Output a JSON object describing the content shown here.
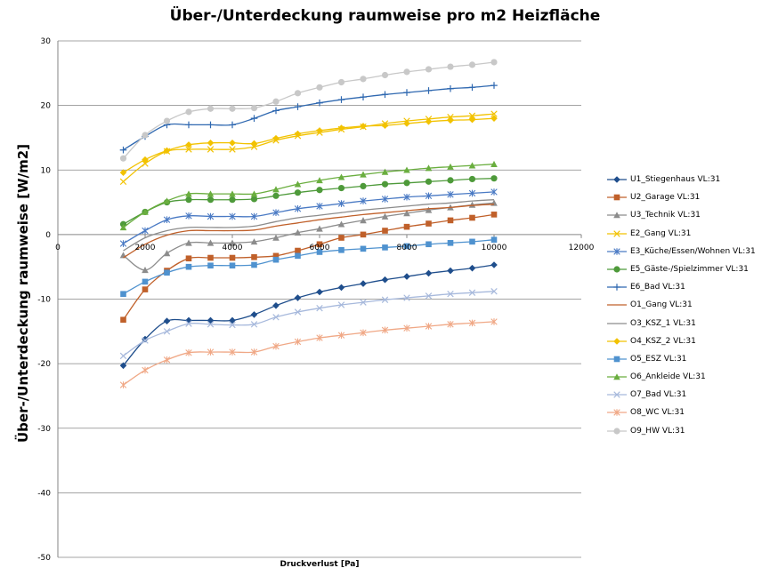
{
  "chart_data": {
    "type": "line",
    "title": "Über-/Unterdeckung raumweise pro m2 Heizfläche",
    "xlabel": "Druckverlust [Pa]",
    "ylabel": "Über-/Unterdeckung raumweise [W/m2]",
    "xlim": [
      0,
      12000
    ],
    "ylim": [
      -50,
      30
    ],
    "x_ticks": [
      "0",
      "2000",
      "4000",
      "6000",
      "8000",
      "10000",
      "12000"
    ],
    "y_ticks": [
      "-50",
      "-40",
      "-30",
      "-20",
      "-10",
      "0",
      "10",
      "20",
      "30"
    ],
    "grid": true,
    "legend": "right",
    "x": [
      1500,
      2000,
      2500,
      3000,
      3500,
      4000,
      4500,
      5000,
      5500,
      6000,
      6500,
      7000,
      7500,
      8000,
      8500,
      9000,
      9500,
      10000
    ],
    "series": [
      {
        "name": "U1_Stiegenhaus VL:31",
        "color": "#1f4e8c",
        "marker": "diamond",
        "values": [
          -20.3,
          -16.2,
          -13.4,
          -13.3,
          -13.3,
          -13.3,
          -12.4,
          -11.0,
          -9.8,
          -8.9,
          -8.2,
          -7.6,
          -7.0,
          -6.5,
          -6.0,
          -5.6,
          -5.2,
          -4.7
        ]
      },
      {
        "name": "U2_Garage VL:31",
        "color": "#c0602a",
        "marker": "square",
        "values": [
          -13.2,
          -8.5,
          -5.6,
          -3.7,
          -3.6,
          -3.6,
          -3.5,
          -3.3,
          -2.5,
          -1.5,
          -0.5,
          0.0,
          0.6,
          1.2,
          1.7,
          2.2,
          2.6,
          3.1
        ]
      },
      {
        "name": "U3_Technik VL:31",
        "color": "#8c8c8c",
        "marker": "triangle",
        "values": [
          -3.2,
          -5.5,
          -2.9,
          -1.3,
          -1.3,
          -1.3,
          -1.1,
          -0.5,
          0.3,
          0.9,
          1.6,
          2.2,
          2.8,
          3.3,
          3.8,
          4.2,
          4.6,
          4.9
        ]
      },
      {
        "name": "E2_Gang VL:31",
        "color": "#f2c200",
        "marker": "x",
        "values": [
          8.2,
          11.0,
          12.9,
          13.2,
          13.2,
          13.2,
          13.6,
          14.6,
          15.3,
          15.8,
          16.3,
          16.7,
          17.2,
          17.6,
          17.9,
          18.2,
          18.4,
          18.7
        ]
      },
      {
        "name": "E3_Küche/Essen/Wohnen VL:31",
        "color": "#4a7ac4",
        "marker": "star",
        "values": [
          -1.4,
          0.6,
          2.3,
          2.9,
          2.8,
          2.8,
          2.8,
          3.4,
          4.0,
          4.4,
          4.8,
          5.2,
          5.5,
          5.8,
          6.0,
          6.2,
          6.4,
          6.6
        ]
      },
      {
        "name": "E5_Gäste-/Spielzimmer VL:31",
        "color": "#4e9a3a",
        "marker": "circle",
        "values": [
          1.6,
          3.5,
          5.0,
          5.4,
          5.4,
          5.4,
          5.5,
          6.0,
          6.5,
          6.9,
          7.2,
          7.5,
          7.8,
          8.0,
          8.2,
          8.4,
          8.6,
          8.7
        ]
      },
      {
        "name": "E6_Bad VL:31",
        "color": "#2f68b0",
        "marker": "plus",
        "values": [
          13.1,
          15.2,
          17.0,
          17.0,
          17.0,
          17.0,
          18.0,
          19.2,
          19.8,
          20.4,
          20.9,
          21.3,
          21.7,
          22.0,
          22.3,
          22.6,
          22.8,
          23.1
        ]
      },
      {
        "name": "O1_Gang VL:31",
        "color": "#c0602a",
        "marker": "none",
        "values": [
          -3.6,
          -1.5,
          -0.1,
          0.6,
          0.6,
          0.6,
          0.7,
          1.3,
          1.8,
          2.3,
          2.7,
          3.1,
          3.4,
          3.7,
          4.0,
          4.2,
          4.5,
          4.7
        ]
      },
      {
        "name": "O3_KSZ_1 VL:31",
        "color": "#8c8c8c",
        "marker": "none",
        "values": [
          -2.5,
          -0.5,
          0.6,
          1.1,
          1.1,
          1.1,
          1.3,
          2.0,
          2.6,
          3.0,
          3.4,
          3.8,
          4.1,
          4.4,
          4.7,
          4.9,
          5.2,
          5.4
        ]
      },
      {
        "name": "O4_KSZ_2 VL:31",
        "color": "#f2c200",
        "marker": "diamond",
        "values": [
          9.6,
          11.6,
          13.0,
          13.9,
          14.2,
          14.2,
          14.1,
          14.9,
          15.6,
          16.1,
          16.5,
          16.8,
          16.9,
          17.2,
          17.5,
          17.7,
          17.8,
          18.0
        ]
      },
      {
        "name": "O5_ESZ VL:31",
        "color": "#4f92cf",
        "marker": "square",
        "values": [
          -9.2,
          -7.3,
          -5.9,
          -5.0,
          -4.8,
          -4.8,
          -4.7,
          -3.9,
          -3.3,
          -2.7,
          -2.4,
          -2.2,
          -2.0,
          -1.8,
          -1.5,
          -1.3,
          -1.1,
          -0.8
        ]
      },
      {
        "name": "O6_Ankleide VL:31",
        "color": "#6aae3f",
        "marker": "triangle",
        "values": [
          1.1,
          3.5,
          5.2,
          6.3,
          6.3,
          6.3,
          6.3,
          7.0,
          7.8,
          8.4,
          8.9,
          9.3,
          9.7,
          10.0,
          10.3,
          10.5,
          10.7,
          10.9
        ]
      },
      {
        "name": "O7_Bad VL:31",
        "color": "#a7b9dc",
        "marker": "x",
        "values": [
          -18.8,
          -16.4,
          -15.0,
          -13.8,
          -13.9,
          -14.0,
          -13.9,
          -12.8,
          -12.0,
          -11.4,
          -10.9,
          -10.5,
          -10.1,
          -9.8,
          -9.5,
          -9.2,
          -9.0,
          -8.8
        ]
      },
      {
        "name": "O8_WC VL:31",
        "color": "#f0a886",
        "marker": "star",
        "values": [
          -23.3,
          -21.0,
          -19.4,
          -18.3,
          -18.2,
          -18.2,
          -18.2,
          -17.3,
          -16.6,
          -16.0,
          -15.6,
          -15.2,
          -14.8,
          -14.5,
          -14.2,
          -13.9,
          -13.7,
          -13.5
        ]
      },
      {
        "name": "O9_HW VL:31",
        "color": "#c8c8c8",
        "marker": "circle",
        "values": [
          11.8,
          15.4,
          17.6,
          19.0,
          19.5,
          19.5,
          19.6,
          20.6,
          21.9,
          22.8,
          23.6,
          24.1,
          24.7,
          25.2,
          25.6,
          26.0,
          26.3,
          26.7
        ]
      }
    ]
  }
}
